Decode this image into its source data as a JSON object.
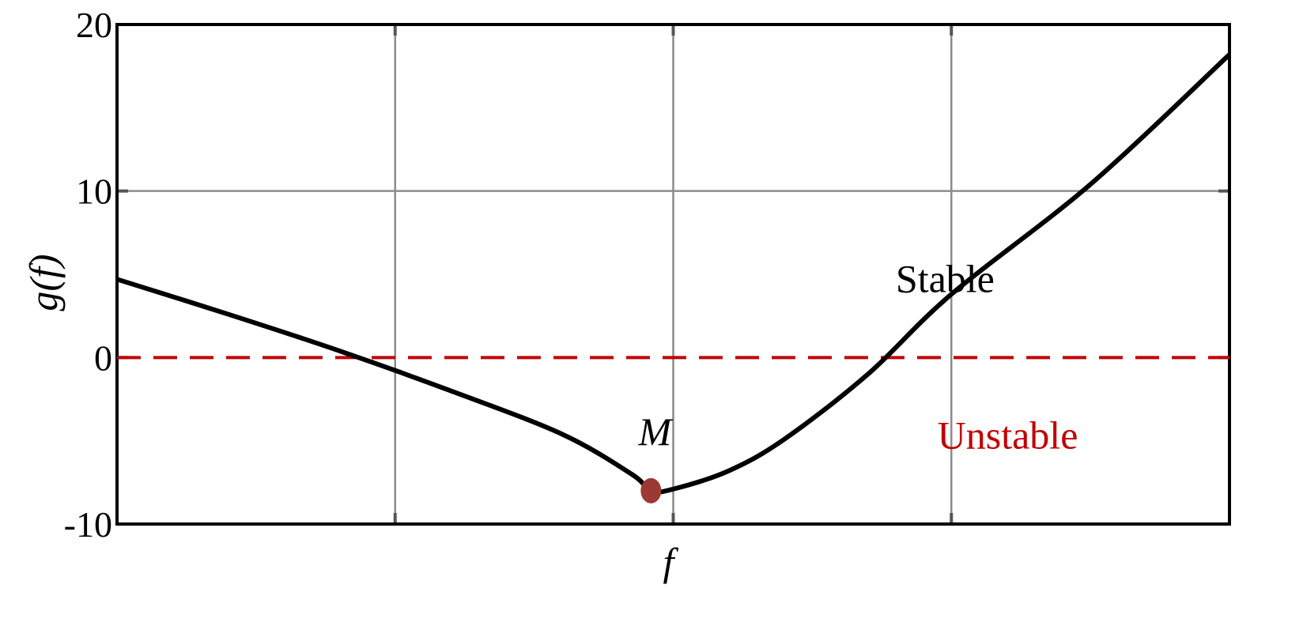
{
  "chart_data": {
    "type": "line",
    "xlabel": "f",
    "ylabel": "g(f)",
    "ylim": [
      -10,
      20
    ],
    "xlim": [
      0,
      4
    ],
    "yticks": [
      {
        "value": 20,
        "label": "20"
      },
      {
        "value": 10,
        "label": "10"
      },
      {
        "value": 0,
        "label": "0"
      },
      {
        "value": -10,
        "label": "-10"
      }
    ],
    "xgrid": [
      1,
      2,
      3
    ],
    "ygrid": [
      10
    ],
    "grid": true,
    "series": [
      {
        "color": "#000000",
        "x": [
          0,
          0.4,
          0.8,
          1.2,
          1.6,
          1.85,
          1.92,
          2.0,
          2.2,
          2.4,
          2.7,
          3.0,
          3.5,
          4.0
        ],
        "y": [
          4.7,
          2.6,
          0.4,
          -2.0,
          -4.6,
          -7.0,
          -8.0,
          -7.9,
          -6.8,
          -4.9,
          -1.0,
          3.8,
          10.4,
          18.2
        ]
      }
    ],
    "reference_line": {
      "y": 0,
      "color": "#c00000",
      "style": "dashed"
    },
    "marker": {
      "x": 1.92,
      "y": -8.0,
      "label": "M",
      "color": "#9b3a33"
    },
    "annotations": [
      {
        "text": "Stable",
        "x": 2.8,
        "y": 4.7,
        "color": "#000000"
      },
      {
        "text": "Unstable",
        "x": 2.95,
        "y": -4.7,
        "color": "#c00000"
      }
    ]
  }
}
